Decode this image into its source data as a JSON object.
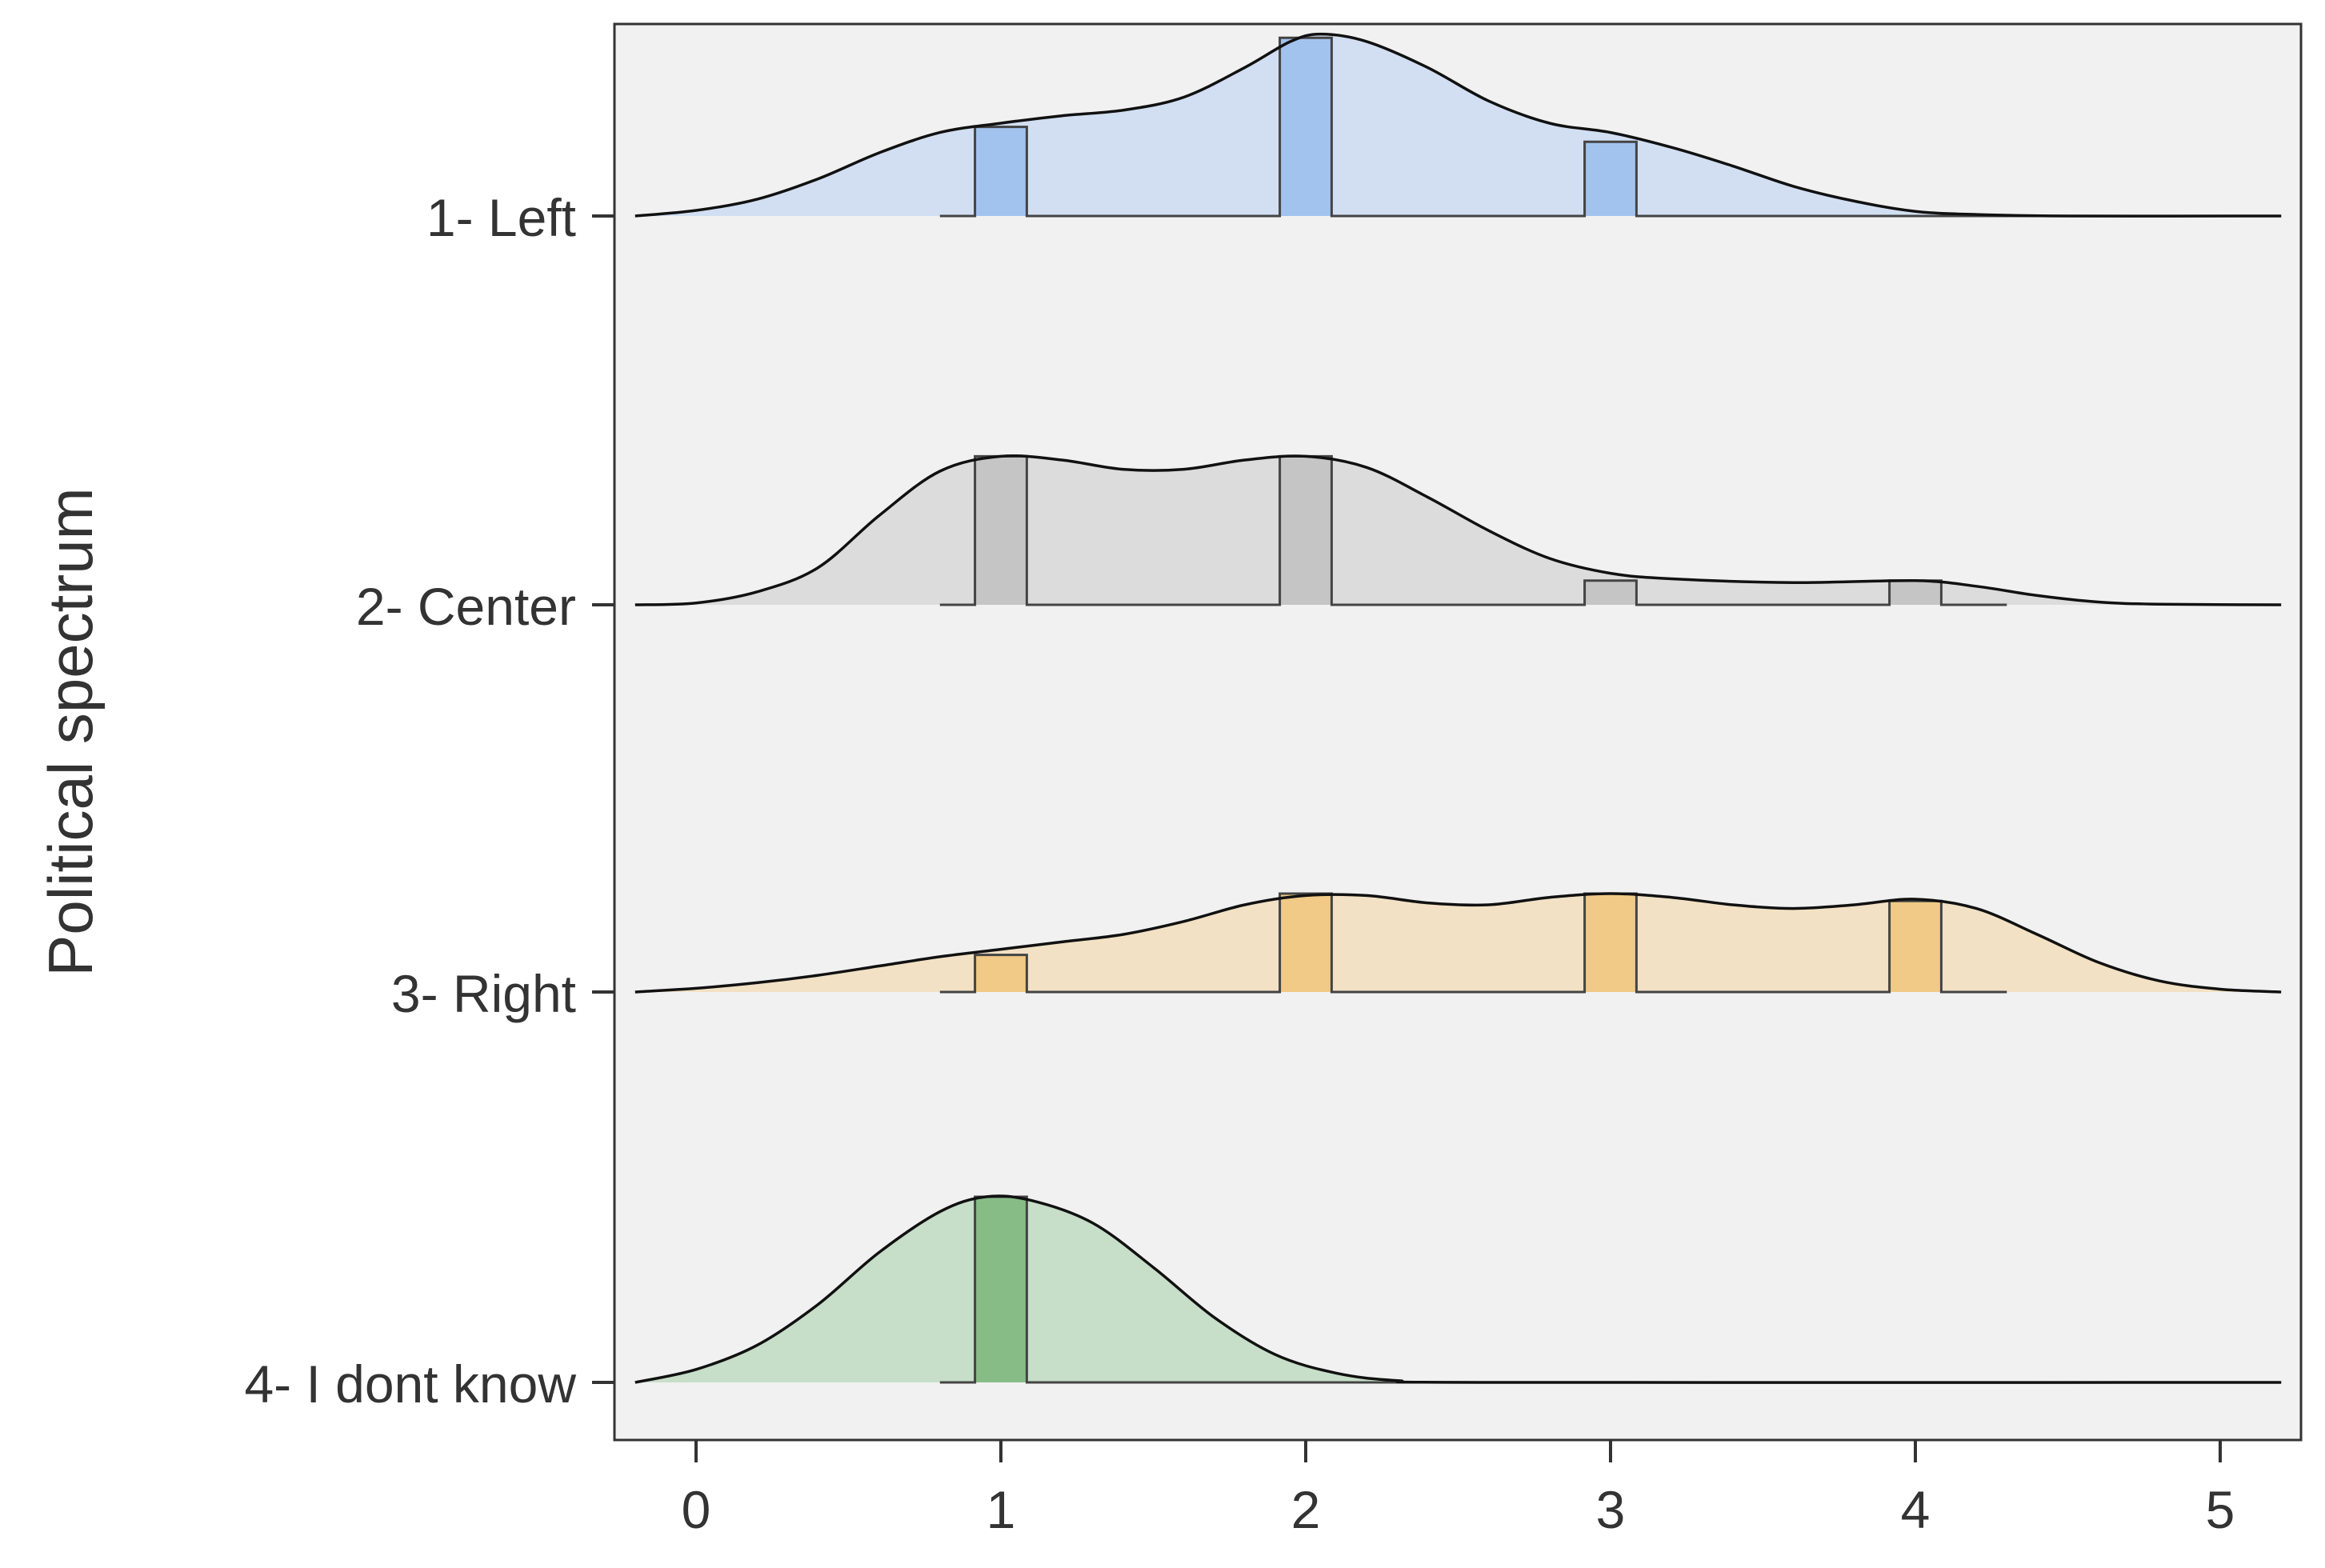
{
  "chart_data": {
    "type": "ridgeline",
    "title": "",
    "xlabel": "",
    "ylabel": "Political spectrum",
    "xlim": [
      -0.25,
      5.25
    ],
    "xticks": [
      0,
      1,
      2,
      3,
      4,
      5
    ],
    "grid": false,
    "legend": "none",
    "series": [
      {
        "name": "1- Left",
        "fill": "#d2dff2",
        "bar_fill": "#a3c3ef",
        "density_peak": 2.0,
        "density": [
          [
            -0.2,
            0.0
          ],
          [
            0.0,
            0.03
          ],
          [
            0.2,
            0.09
          ],
          [
            0.4,
            0.2
          ],
          [
            0.6,
            0.34
          ],
          [
            0.8,
            0.45
          ],
          [
            1.0,
            0.5
          ],
          [
            1.2,
            0.54
          ],
          [
            1.4,
            0.57
          ],
          [
            1.6,
            0.64
          ],
          [
            1.8,
            0.8
          ],
          [
            1.95,
            0.94
          ],
          [
            2.05,
            0.98
          ],
          [
            2.2,
            0.94
          ],
          [
            2.4,
            0.8
          ],
          [
            2.6,
            0.62
          ],
          [
            2.8,
            0.5
          ],
          [
            3.0,
            0.45
          ],
          [
            3.2,
            0.37
          ],
          [
            3.4,
            0.27
          ],
          [
            3.6,
            0.16
          ],
          [
            3.8,
            0.08
          ],
          [
            4.0,
            0.025
          ],
          [
            4.2,
            0.008
          ],
          [
            4.5,
            0.0
          ],
          [
            5.2,
            0.0
          ]
        ],
        "bars_x": [
          1,
          2,
          3
        ],
        "bars_height": [
          0.48,
          0.96,
          0.4
        ],
        "bars_range": [
          0.8,
          5.2
        ]
      },
      {
        "name": "2- Center",
        "fill": "#dcdcdc",
        "bar_fill": "#c5c5c5",
        "density_peak": 0.8,
        "density": [
          [
            -0.2,
            0.0
          ],
          [
            0.0,
            0.01
          ],
          [
            0.2,
            0.07
          ],
          [
            0.4,
            0.2
          ],
          [
            0.6,
            0.48
          ],
          [
            0.8,
            0.72
          ],
          [
            1.0,
            0.8
          ],
          [
            1.2,
            0.78
          ],
          [
            1.4,
            0.73
          ],
          [
            1.6,
            0.73
          ],
          [
            1.8,
            0.78
          ],
          [
            2.0,
            0.8
          ],
          [
            2.2,
            0.74
          ],
          [
            2.4,
            0.58
          ],
          [
            2.6,
            0.4
          ],
          [
            2.8,
            0.25
          ],
          [
            3.0,
            0.17
          ],
          [
            3.2,
            0.14
          ],
          [
            3.6,
            0.12
          ],
          [
            4.0,
            0.13
          ],
          [
            4.2,
            0.1
          ],
          [
            4.4,
            0.05
          ],
          [
            4.6,
            0.015
          ],
          [
            4.8,
            0.003
          ],
          [
            5.2,
            0.0
          ]
        ],
        "bars_x": [
          1,
          2,
          3,
          4
        ],
        "bars_height": [
          0.8,
          0.8,
          0.13,
          0.13
        ],
        "bars_range": [
          0.8,
          4.3
        ]
      },
      {
        "name": "3- Right",
        "fill": "#f2e1c4",
        "bar_fill": "#f0ca86",
        "density_peak": 0.55,
        "density": [
          [
            -0.2,
            0.0
          ],
          [
            0.0,
            0.02
          ],
          [
            0.2,
            0.05
          ],
          [
            0.4,
            0.09
          ],
          [
            0.6,
            0.14
          ],
          [
            0.8,
            0.19
          ],
          [
            1.0,
            0.23
          ],
          [
            1.2,
            0.27
          ],
          [
            1.4,
            0.31
          ],
          [
            1.6,
            0.38
          ],
          [
            1.8,
            0.47
          ],
          [
            2.0,
            0.52
          ],
          [
            2.2,
            0.52
          ],
          [
            2.4,
            0.48
          ],
          [
            2.6,
            0.47
          ],
          [
            2.8,
            0.51
          ],
          [
            3.0,
            0.53
          ],
          [
            3.2,
            0.51
          ],
          [
            3.4,
            0.47
          ],
          [
            3.6,
            0.45
          ],
          [
            3.8,
            0.47
          ],
          [
            4.0,
            0.5
          ],
          [
            4.2,
            0.45
          ],
          [
            4.4,
            0.31
          ],
          [
            4.6,
            0.16
          ],
          [
            4.8,
            0.06
          ],
          [
            5.0,
            0.015
          ],
          [
            5.2,
            0.0
          ]
        ],
        "bars_x": [
          1,
          2,
          3,
          4
        ],
        "bars_height": [
          0.2,
          0.53,
          0.53,
          0.49
        ],
        "bars_range": [
          0.8,
          4.3
        ]
      },
      {
        "name": "4- I dont know",
        "fill": "#c7dec9",
        "bar_fill": "#87bc87",
        "density_peak": 1.8,
        "density": [
          [
            -0.2,
            0.0
          ],
          [
            0.0,
            0.07
          ],
          [
            0.2,
            0.2
          ],
          [
            0.4,
            0.42
          ],
          [
            0.6,
            0.7
          ],
          [
            0.8,
            0.92
          ],
          [
            0.95,
            1.0
          ],
          [
            1.1,
            0.98
          ],
          [
            1.3,
            0.86
          ],
          [
            1.5,
            0.62
          ],
          [
            1.7,
            0.35
          ],
          [
            1.9,
            0.15
          ],
          [
            2.1,
            0.05
          ],
          [
            2.3,
            0.01
          ],
          [
            2.6,
            0.0
          ],
          [
            5.2,
            0.0
          ]
        ],
        "bars_x": [
          1
        ],
        "bars_height": [
          1.0
        ],
        "bars_range": [
          0.8,
          5.2
        ]
      }
    ]
  }
}
